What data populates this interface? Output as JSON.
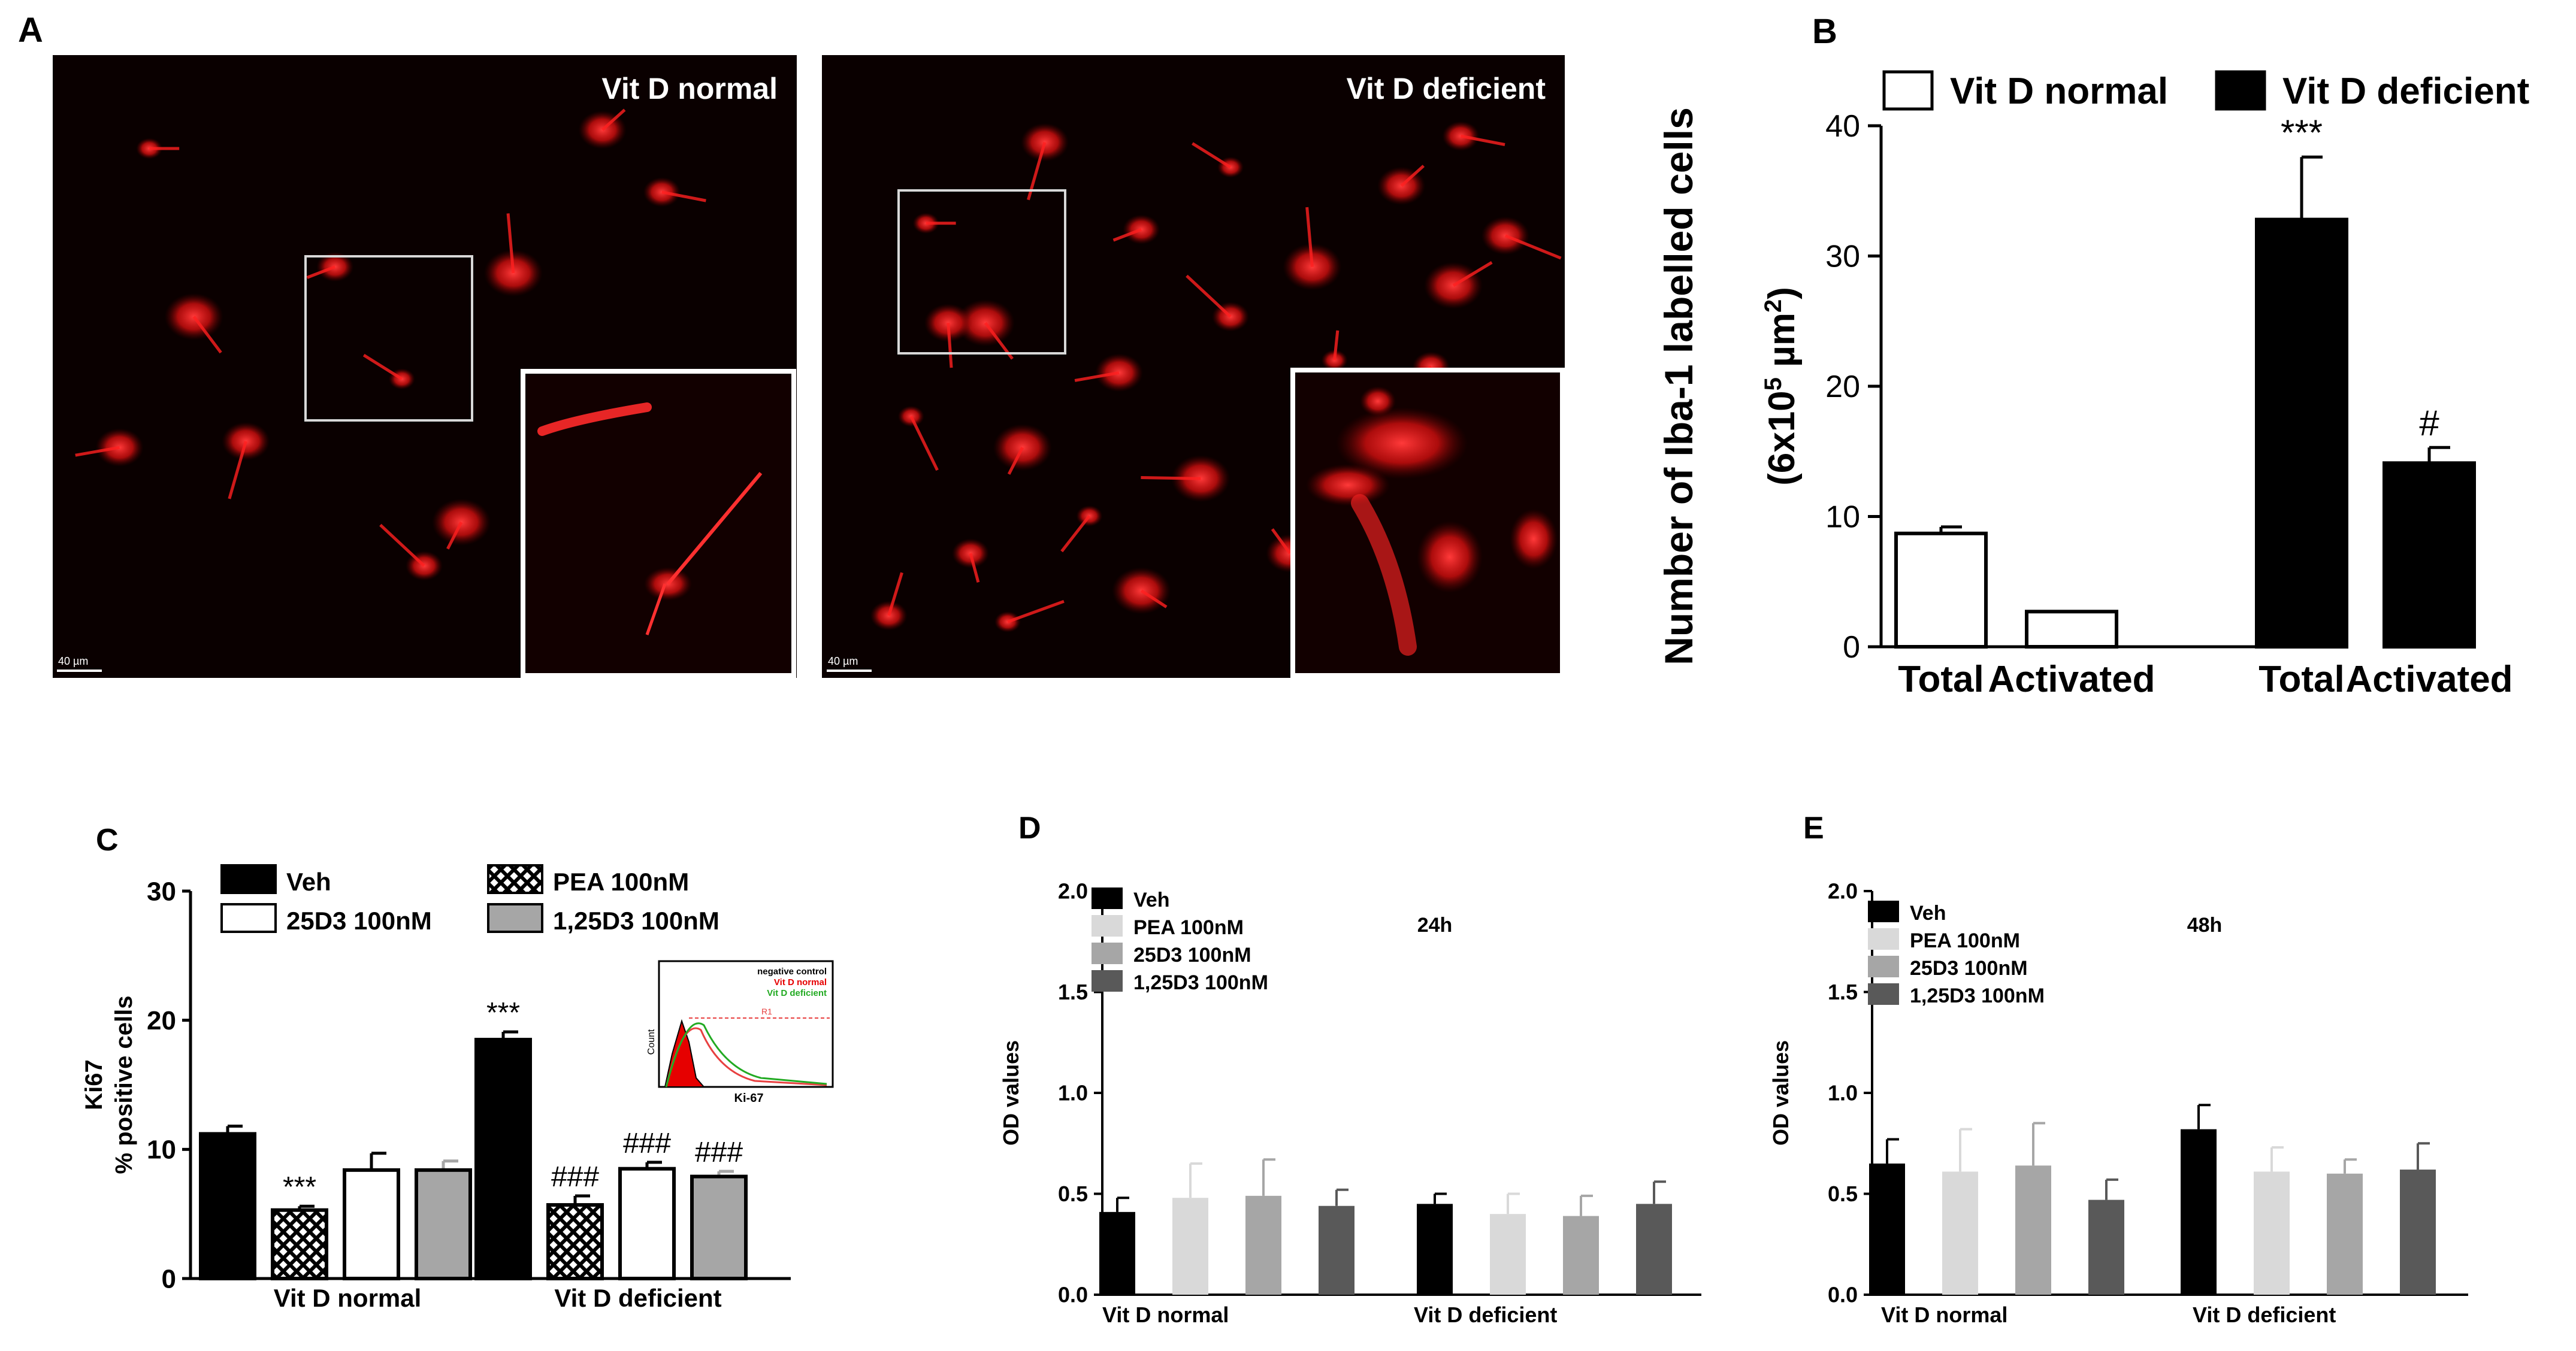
{
  "panels": {
    "A": {
      "letter": "A",
      "images": [
        {
          "label": "Vit D normal",
          "scalebar": "40 µm",
          "cells": [
            [
              0.13,
              0.15
            ],
            [
              0.19,
              0.42
            ],
            [
              0.26,
              0.62
            ],
            [
              0.38,
              0.34
            ],
            [
              0.47,
              0.52
            ],
            [
              0.62,
              0.35
            ],
            [
              0.74,
              0.12
            ],
            [
              0.82,
              0.22
            ],
            [
              0.83,
              0.6
            ],
            [
              0.55,
              0.75
            ],
            [
              0.09,
              0.63
            ],
            [
              0.5,
              0.82
            ]
          ]
        },
        {
          "label": "Vit D deficient",
          "scalebar": "40 µm",
          "cells": [
            [
              0.14,
              0.27
            ],
            [
              0.22,
              0.43
            ],
            [
              0.3,
              0.14
            ],
            [
              0.43,
              0.28
            ],
            [
              0.55,
              0.18
            ],
            [
              0.66,
              0.34
            ],
            [
              0.78,
              0.21
            ],
            [
              0.86,
              0.13
            ],
            [
              0.12,
              0.58
            ],
            [
              0.27,
              0.63
            ],
            [
              0.4,
              0.51
            ],
            [
              0.55,
              0.42
            ],
            [
              0.69,
              0.49
            ],
            [
              0.85,
              0.37
            ],
            [
              0.92,
              0.29
            ],
            [
              0.2,
              0.8
            ],
            [
              0.36,
              0.74
            ],
            [
              0.51,
              0.68
            ],
            [
              0.63,
              0.8
            ],
            [
              0.09,
              0.9
            ],
            [
              0.25,
              0.91
            ],
            [
              0.43,
              0.86
            ],
            [
              0.17,
              0.43
            ],
            [
              0.82,
              0.5
            ]
          ]
        }
      ]
    },
    "B": {
      "letter": "B"
    },
    "C": {
      "letter": "C"
    },
    "D": {
      "letter": "D"
    },
    "E": {
      "letter": "E"
    }
  },
  "colors": {
    "black": "#000000",
    "white": "#ffffff",
    "light_gray": "#d9d9d9",
    "mid_gray": "#a6a6a6",
    "dark_gray": "#595959",
    "cell_red": "#ff1e1e"
  },
  "chart_data": [
    {
      "panel": "B",
      "type": "bar",
      "ylabel": "Number of Iba-1 labelled cells",
      "ylabel2": "(6x10^5 µm^2)",
      "ylim": [
        0,
        40
      ],
      "yticks": [
        "0",
        "10",
        "20",
        "30",
        "40"
      ],
      "tick_values": [
        0,
        10,
        20,
        30,
        40
      ],
      "categories": [
        "Total",
        "Activated",
        "Total",
        "Activated"
      ],
      "legend": [
        {
          "name": "Vit D normal",
          "fill": "#ffffff"
        },
        {
          "name": "Vit D deficient",
          "fill": "#000000"
        }
      ],
      "bars": [
        {
          "category": "Total",
          "group": "Vit D normal",
          "value": 8.7,
          "err": 0.5,
          "fill": "#ffffff",
          "annotation": ""
        },
        {
          "category": "Activated",
          "group": "Vit D normal",
          "value": 2.7,
          "err": 0,
          "fill": "#ffffff",
          "annotation": ""
        },
        {
          "category": "Total",
          "group": "Vit D deficient",
          "value": 32.8,
          "err": 4.8,
          "fill": "#000000",
          "annotation": "***"
        },
        {
          "category": "Activated",
          "group": "Vit D deficient",
          "value": 14.1,
          "err": 1.2,
          "fill": "#000000",
          "annotation": "#"
        }
      ]
    },
    {
      "panel": "C",
      "type": "bar",
      "ylabel": "Ki67",
      "ylabel2": "% positive cells",
      "ylim": [
        0,
        30
      ],
      "yticks": [
        "0",
        "10",
        "20",
        "30"
      ],
      "tick_values": [
        0,
        10,
        20,
        30
      ],
      "groups": [
        "Vit D normal",
        "Vit D deficient"
      ],
      "legend": [
        {
          "name": "Veh",
          "fill": "#000000"
        },
        {
          "name": "PEA 100nM",
          "fill": "pattern"
        },
        {
          "name": "25D3 100nM",
          "fill": "#ffffff"
        },
        {
          "name": "1,25D3 100nM",
          "fill": "#a6a6a6"
        }
      ],
      "series": [
        {
          "name": "Veh",
          "fill": "#000000",
          "values": [
            11.2,
            18.5
          ],
          "errors": [
            0.6,
            0.6
          ],
          "annotations": [
            "",
            "***"
          ]
        },
        {
          "name": "PEA 100nM",
          "fill": "pattern",
          "values": [
            5.3,
            5.7
          ],
          "errors": [
            0.3,
            0.7
          ],
          "annotations": [
            "***",
            "###"
          ]
        },
        {
          "name": "25D3 100nM",
          "fill": "#ffffff",
          "values": [
            8.4,
            8.5
          ],
          "errors": [
            1.3,
            0.5
          ],
          "annotations": [
            "",
            "###"
          ]
        },
        {
          "name": "1,25D3 100nM",
          "fill": "#a6a6a6",
          "values": [
            8.4,
            7.9
          ],
          "errors": [
            0.7,
            0.4
          ],
          "annotations": [
            "",
            "###"
          ]
        }
      ],
      "inset": {
        "legend": [
          "negative control",
          "Vit D normal",
          "Vit D deficient"
        ],
        "xlabel": "Ki-67",
        "ylabel": "Count",
        "gate": "R1"
      }
    },
    {
      "panel": "D",
      "type": "bar",
      "note": "24h",
      "ylabel": "OD values",
      "ylim": [
        0,
        2.0
      ],
      "yticks": [
        "0.0",
        "0.5",
        "1.0",
        "1.5",
        "2.0"
      ],
      "tick_values": [
        0,
        0.5,
        1.0,
        1.5,
        2.0
      ],
      "groups": [
        "Vit D normal",
        "Vit D deficient"
      ],
      "legend": [
        {
          "name": "Veh",
          "fill": "#000000"
        },
        {
          "name": "PEA 100nM",
          "fill": "#d9d9d9"
        },
        {
          "name": "25D3 100nM",
          "fill": "#a6a6a6"
        },
        {
          "name": "1,25D3 100nM",
          "fill": "#595959"
        }
      ],
      "series": [
        {
          "name": "Veh",
          "fill": "#000000",
          "values": [
            0.41,
            0.45
          ],
          "errors": [
            0.07,
            0.05
          ]
        },
        {
          "name": "PEA 100nM",
          "fill": "#d9d9d9",
          "values": [
            0.48,
            0.4
          ],
          "errors": [
            0.17,
            0.1
          ]
        },
        {
          "name": "25D3 100nM",
          "fill": "#a6a6a6",
          "values": [
            0.49,
            0.39
          ],
          "errors": [
            0.18,
            0.1
          ]
        },
        {
          "name": "1,25D3 100nM",
          "fill": "#595959",
          "values": [
            0.44,
            0.45
          ],
          "errors": [
            0.08,
            0.11
          ]
        }
      ]
    },
    {
      "panel": "E",
      "type": "bar",
      "note": "48h",
      "ylabel": "OD values",
      "ylim": [
        0,
        2.0
      ],
      "yticks": [
        "0.0",
        "0.5",
        "1.0",
        "1.5",
        "2.0"
      ],
      "tick_values": [
        0,
        0.5,
        1.0,
        1.5,
        2.0
      ],
      "groups": [
        "Vit D normal",
        "Vit D deficient"
      ],
      "legend": [
        {
          "name": "Veh",
          "fill": "#000000"
        },
        {
          "name": "PEA 100nM",
          "fill": "#d9d9d9"
        },
        {
          "name": "25D3 100nM",
          "fill": "#a6a6a6"
        },
        {
          "name": "1,25D3 100nM",
          "fill": "#595959"
        }
      ],
      "series": [
        {
          "name": "Veh",
          "fill": "#000000",
          "values": [
            0.65,
            0.82
          ],
          "errors": [
            0.12,
            0.12
          ]
        },
        {
          "name": "PEA 100nM",
          "fill": "#d9d9d9",
          "values": [
            0.61,
            0.61
          ],
          "errors": [
            0.21,
            0.12
          ]
        },
        {
          "name": "25D3 100nM",
          "fill": "#a6a6a6",
          "values": [
            0.64,
            0.6
          ],
          "errors": [
            0.21,
            0.07
          ]
        },
        {
          "name": "1,25D3 100nM",
          "fill": "#595959",
          "values": [
            0.47,
            0.62
          ],
          "errors": [
            0.1,
            0.13
          ]
        }
      ]
    }
  ]
}
